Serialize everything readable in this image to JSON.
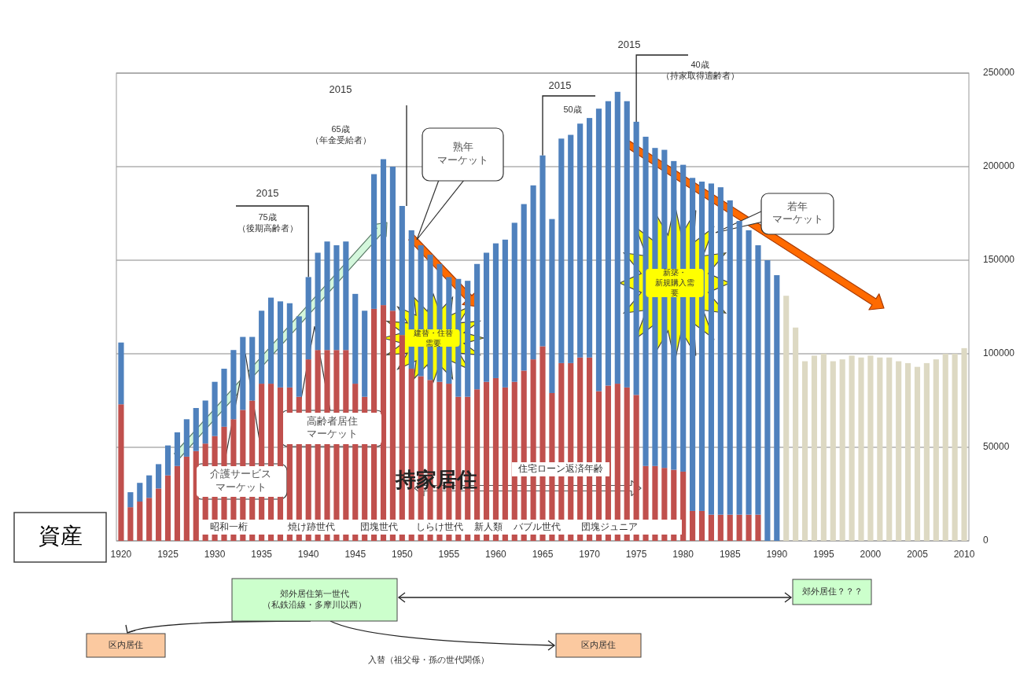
{
  "chart_data": {
    "type": "bar",
    "stacked": true,
    "grid": "y",
    "categories": [
      "1920",
      null,
      null,
      null,
      null,
      "1925",
      null,
      null,
      null,
      null,
      "1930",
      null,
      null,
      null,
      null,
      "1935",
      null,
      null,
      null,
      null,
      "1940",
      null,
      null,
      null,
      null,
      "1945",
      null,
      null,
      null,
      null,
      "1950",
      null,
      null,
      null,
      null,
      "1955",
      null,
      null,
      null,
      null,
      "1960",
      null,
      null,
      null,
      null,
      "1965",
      null,
      null,
      null,
      null,
      "1970",
      null,
      null,
      null,
      null,
      "1975",
      null,
      null,
      null,
      null,
      "1980",
      null,
      null,
      null,
      null,
      "1985",
      null,
      null,
      null,
      null,
      "1990",
      null,
      null,
      null,
      null,
      "1995",
      null,
      null,
      null,
      null,
      "2000",
      null,
      null,
      null,
      null,
      "2005",
      null,
      null,
      null,
      null,
      "2010"
    ],
    "series": [
      {
        "color": "#c0504d",
        "values": [
          73000,
          18000,
          21000,
          23000,
          28000,
          35000,
          40000,
          45000,
          48000,
          52000,
          56000,
          61000,
          65000,
          70000,
          75000,
          84000,
          84000,
          82000,
          82000,
          77000,
          97000,
          102000,
          102000,
          102000,
          102000,
          84000,
          77000,
          124000,
          126000,
          123000,
          110000,
          92000,
          88000,
          86000,
          85000,
          84000,
          77000,
          77000,
          81000,
          85000,
          87000,
          82000,
          85000,
          91000,
          97000,
          104000,
          79000,
          95000,
          95000,
          98000,
          98000,
          80000,
          83000,
          84000,
          82000,
          78000,
          40000,
          40000,
          39000,
          38000,
          37000,
          16000,
          16000,
          14000,
          14000,
          14000,
          14000,
          14000,
          14000,
          0,
          0,
          null,
          null,
          null,
          null,
          null,
          null,
          null,
          null,
          null,
          null,
          null,
          null,
          null,
          null,
          null,
          null,
          null,
          null,
          null,
          null
        ]
      },
      {
        "color": "#4f81bd",
        "values": [
          33000,
          8000,
          10000,
          12000,
          13000,
          16000,
          18000,
          20000,
          23000,
          23000,
          29000,
          31000,
          37000,
          39000,
          34000,
          39000,
          46000,
          46000,
          45000,
          43000,
          44000,
          52000,
          58000,
          56000,
          58000,
          48000,
          46000,
          72000,
          78000,
          77000,
          69000,
          74000,
          70000,
          67000,
          63000,
          57000,
          63000,
          62000,
          67000,
          69000,
          72000,
          79000,
          85000,
          89000,
          93000,
          102000,
          93000,
          120000,
          122000,
          125000,
          128000,
          151000,
          152000,
          156000,
          153000,
          146000,
          176000,
          170000,
          170000,
          165000,
          164000,
          178000,
          176000,
          177000,
          175000,
          168000,
          157000,
          152000,
          144000,
          150000,
          142000,
          null,
          null,
          null,
          null,
          null,
          null,
          null,
          null,
          null,
          null,
          null,
          null,
          null,
          null,
          null,
          null,
          null,
          null,
          null,
          null
        ]
      },
      {
        "color": "#ddd9c3",
        "values": [
          null,
          null,
          null,
          null,
          null,
          null,
          null,
          null,
          null,
          null,
          null,
          null,
          null,
          null,
          null,
          null,
          null,
          null,
          null,
          null,
          null,
          null,
          null,
          null,
          null,
          null,
          null,
          null,
          null,
          null,
          null,
          null,
          null,
          null,
          null,
          null,
          null,
          null,
          null,
          null,
          null,
          null,
          null,
          null,
          null,
          null,
          null,
          null,
          null,
          null,
          null,
          null,
          null,
          null,
          null,
          null,
          null,
          null,
          null,
          null,
          null,
          null,
          null,
          null,
          null,
          null,
          null,
          null,
          null,
          null,
          null,
          131000,
          114000,
          96000,
          99000,
          100000,
          96000,
          97000,
          99000,
          98000,
          99000,
          98000,
          98000,
          96000,
          95000,
          93000,
          95000,
          97000,
          100000,
          100000,
          103000
        ]
      }
    ],
    "ylim": [
      0,
      250000
    ],
    "yticks": [
      0,
      50000,
      100000,
      150000,
      200000,
      250000
    ],
    "annotations": [
      "2015",
      {
        "text": "75歳（後期高齢者）",
        "x": "1940",
        "y": 141000
      },
      "2015",
      "65歳（年金受給者）",
      "2015",
      {
        "text": "50歳",
        "x": "1965",
        "y": 206000
      },
      "2015",
      {
        "text": "40歳（持家取得適齢者）",
        "x": "1975",
        "y": 224000
      },
      "熟年マーケット",
      "若年マーケット",
      "介護サービスマーケット",
      "高齢者居住マーケット",
      "建替・住替需要",
      "新築・新規購入需要",
      "住宅ローン返済年齢",
      "持家居住",
      "昭和一桁",
      "焼け跡世代",
      "団塊世代",
      "しらけ世代",
      "新人類",
      "バブル世代",
      "団塊ジュニア",
      "郊外居住第一世代（私鉄沿線・多摩川以西）",
      "郊外居住？？？",
      "区内居住",
      "区内居住",
      "入替（祖父母・孫の世代関係）",
      "資産"
    ]
  }
}
